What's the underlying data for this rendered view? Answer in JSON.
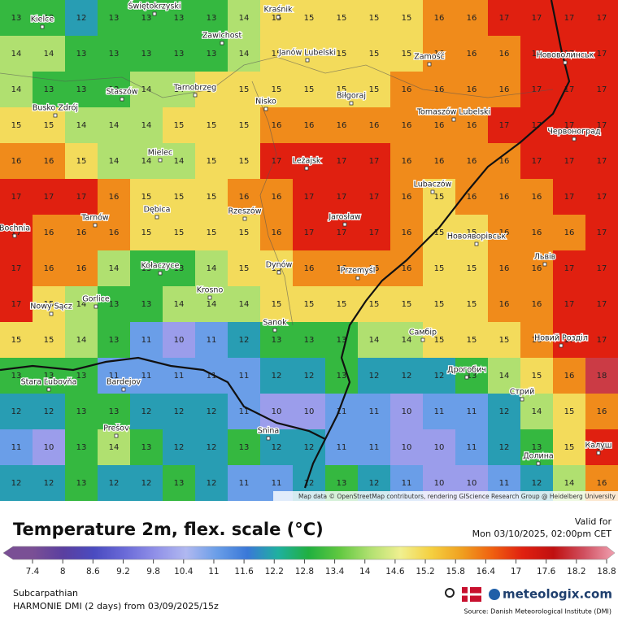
{
  "header": {
    "title": "Temperature 2m, flex. scale (°C)",
    "valid_label": "Valid for",
    "valid_time": "Mon 03/10/2025, 02:00pm CET"
  },
  "map": {
    "attribution": "Map data © OpenStreetMap contributors, rendering GIScience Research Group @ Heidelberg University",
    "cities": [
      "Kielce",
      "Świętokrzyski",
      "Kraśnik",
      "Zawichost",
      "Janów Lubelski",
      "Zamość",
      "Нововолинськ",
      "Busko Zdrój",
      "Staszów",
      "Tarnobrzeg",
      "Nisko",
      "Biłgoraj",
      "Tomaszów Lubelski",
      "Червоноград",
      "Mielec",
      "Leżajsk",
      "Lubaczów",
      "Tarnów",
      "Dębica",
      "Rzeszów",
      "Jarosław",
      "Новояворівськ",
      "Bochnia",
      "Kołaczyce",
      "Dynów",
      "Przemyśl",
      "Львів",
      "Krosno",
      "Gorlice",
      "Nowy Sącz",
      "Sanok",
      "Самбір",
      "Новий Розділ",
      "Stara Ľubovňa",
      "Bardejov",
      "Дрогобич",
      "Стрий",
      "Prešov",
      "Snina",
      "Калуш",
      "Долина"
    ],
    "temperatures": [
      [
        13,
        13,
        12,
        13,
        13,
        13,
        13,
        14,
        15,
        15,
        15,
        15,
        15,
        16,
        16,
        17,
        17,
        17,
        17
      ],
      [
        14,
        14,
        13,
        13,
        13,
        13,
        13,
        14,
        15,
        15,
        15,
        15,
        15,
        16,
        16,
        16,
        17,
        17,
        17
      ],
      [
        14,
        13,
        13,
        13,
        14,
        14,
        15,
        15,
        15,
        15,
        15,
        15,
        16,
        16,
        16,
        16,
        17,
        17,
        17
      ],
      [
        15,
        15,
        14,
        14,
        14,
        15,
        15,
        15,
        16,
        16,
        16,
        16,
        16,
        16,
        16,
        17,
        17,
        17,
        17
      ],
      [
        16,
        16,
        15,
        14,
        14,
        14,
        15,
        15,
        17,
        17,
        17,
        17,
        16,
        16,
        16,
        16,
        17,
        17,
        17
      ],
      [
        17,
        17,
        17,
        16,
        15,
        15,
        15,
        16,
        16,
        17,
        17,
        17,
        16,
        15,
        16,
        16,
        16,
        17,
        17
      ],
      [
        17,
        16,
        16,
        16,
        15,
        15,
        15,
        15,
        16,
        17,
        17,
        17,
        16,
        15,
        15,
        16,
        16,
        16,
        17
      ],
      [
        17,
        16,
        16,
        14,
        13,
        13,
        14,
        15,
        15,
        16,
        16,
        16,
        16,
        15,
        15,
        16,
        16,
        17,
        17
      ],
      [
        17,
        15,
        14,
        13,
        13,
        14,
        14,
        14,
        15,
        15,
        15,
        15,
        15,
        15,
        15,
        16,
        16,
        17,
        17
      ],
      [
        15,
        15,
        14,
        13,
        11,
        10,
        11,
        12,
        13,
        13,
        13,
        14,
        14,
        15,
        15,
        15,
        16,
        17,
        17
      ],
      [
        13,
        13,
        13,
        11,
        11,
        11,
        11,
        11,
        12,
        12,
        13,
        12,
        12,
        12,
        13,
        14,
        15,
        16,
        18
      ],
      [
        12,
        12,
        13,
        13,
        12,
        12,
        12,
        11,
        10,
        10,
        11,
        11,
        10,
        11,
        11,
        12,
        14,
        15,
        16
      ],
      [
        11,
        10,
        13,
        14,
        13,
        12,
        12,
        13,
        12,
        12,
        11,
        11,
        10,
        10,
        11,
        12,
        13,
        15,
        17
      ],
      [
        12,
        12,
        13,
        12,
        12,
        13,
        12,
        11,
        11,
        12,
        13,
        12,
        11,
        10,
        10,
        11,
        12,
        14,
        16
      ]
    ]
  },
  "legend": {
    "ticks": [
      7.4,
      8,
      8.6,
      9.2,
      9.8,
      10.4,
      11,
      11.6,
      12.2,
      12.8,
      13.4,
      14,
      14.6,
      15.2,
      15.8,
      16.4,
      17,
      17.6,
      18.2,
      18.8
    ],
    "colors": [
      "#7a4f95",
      "#5a3fa0",
      "#4a4bc0",
      "#6a6ad8",
      "#9090e8",
      "#b0b8f0",
      "#6a9ee8",
      "#3a78d8",
      "#1fb0a0",
      "#20b040",
      "#60c840",
      "#b0e070",
      "#f0f090",
      "#f5d040",
      "#f0a020",
      "#f06010",
      "#e02010",
      "#c01010",
      "#d05060",
      "#f0a0b0"
    ]
  },
  "footer": {
    "region": "Subcarpathian",
    "model": "HARMONIE DMI (2 days) from  03/09/2025/15z",
    "brand": "meteologix.com",
    "source": "Source: Danish Meteorological Institute (DMI)"
  }
}
